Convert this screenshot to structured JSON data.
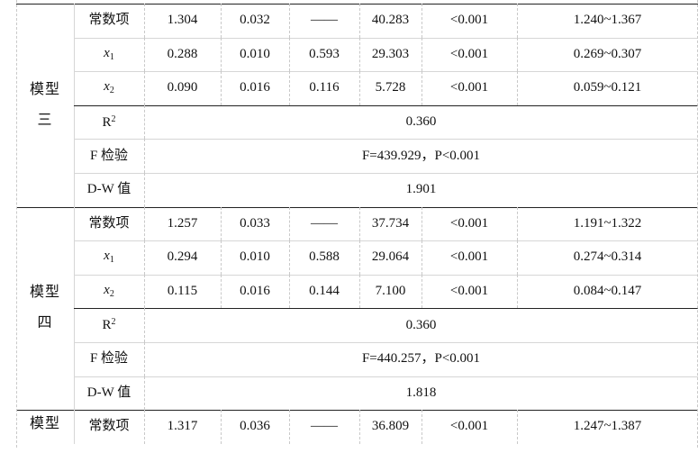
{
  "blocks": [
    {
      "model_label": [
        "模型",
        "三"
      ],
      "rows": [
        {
          "label": "常数项",
          "b": "1.304",
          "se": "0.032",
          "beta": "——",
          "t": "40.283",
          "p": "<0.001",
          "ci": "1.240~1.367"
        },
        {
          "var": "x",
          "sub": "1",
          "b": "0.288",
          "se": "0.010",
          "beta": "0.593",
          "t": "29.303",
          "p": "<0.001",
          "ci": "0.269~0.307"
        },
        {
          "var": "x",
          "sub": "2",
          "b": "0.090",
          "se": "0.016",
          "beta": "0.116",
          "t": "5.728",
          "p": "<0.001",
          "ci": "0.059~0.121"
        }
      ],
      "stats": [
        {
          "label": "R",
          "sup": "2",
          "value": "0.360"
        },
        {
          "label": "F 检验",
          "value": "F=439.929，P<0.001"
        },
        {
          "label": "D-W 值",
          "value": "1.901"
        }
      ]
    },
    {
      "model_label": [
        "模型",
        "四"
      ],
      "rows": [
        {
          "label": "常数项",
          "b": "1.257",
          "se": "0.033",
          "beta": "——",
          "t": "37.734",
          "p": "<0.001",
          "ci": "1.191~1.322"
        },
        {
          "var": "x",
          "sub": "1",
          "b": "0.294",
          "se": "0.010",
          "beta": "0.588",
          "t": "29.064",
          "p": "<0.001",
          "ci": "0.274~0.314"
        },
        {
          "var": "x",
          "sub": "2",
          "b": "0.115",
          "se": "0.016",
          "beta": "0.144",
          "t": "7.100",
          "p": "<0.001",
          "ci": "0.084~0.147"
        }
      ],
      "stats": [
        {
          "label": "R",
          "sup": "2",
          "value": "0.360"
        },
        {
          "label": "F 检验",
          "value": "F=440.257，P<0.001"
        },
        {
          "label": "D-W 值",
          "value": "1.818"
        }
      ]
    },
    {
      "model_label": [
        "模型"
      ],
      "rows": [
        {
          "label": "常数项",
          "b": "1.317",
          "se": "0.036",
          "beta": "——",
          "t": "36.809",
          "p": "<0.001",
          "ci": "1.247~1.387"
        }
      ],
      "stats": []
    }
  ]
}
